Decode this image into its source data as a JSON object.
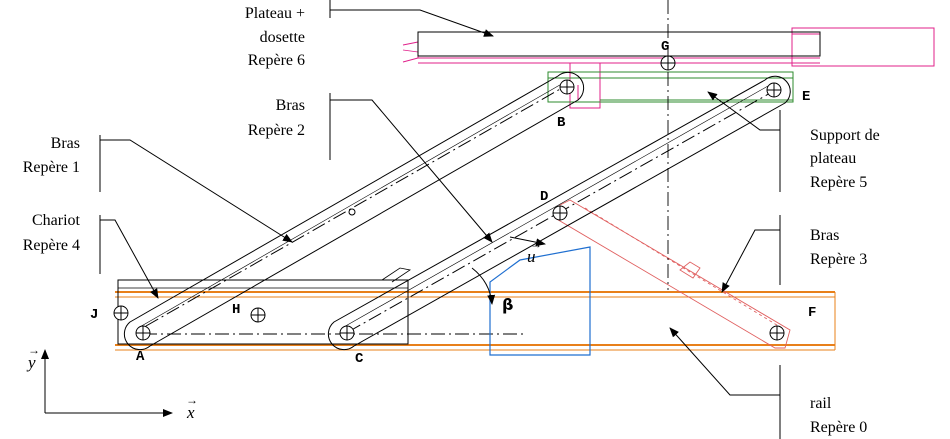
{
  "labels": {
    "plateau_line1": "Plateau +",
    "plateau_line2": "dosette",
    "plateau_line3": "Repère 6",
    "bras2_line1": "Bras",
    "bras2_line2": "Repère 2",
    "bras1_line1": "Bras",
    "bras1_line2": "Repère 1",
    "chariot_line1": "Chariot",
    "chariot_line2": "Repère 4",
    "support_line1": "Support de",
    "support_line2": "plateau",
    "support_line3": "Repère 5",
    "bras3_line1": "Bras",
    "bras3_line2": "Repère 3",
    "rail_line1": "rail",
    "rail_line2": "Repère 0"
  },
  "points": {
    "A": "A",
    "B": "B",
    "C": "C",
    "D": "D",
    "E": "E",
    "F": "F",
    "G": "G",
    "H": "H",
    "J": "J"
  },
  "axes": {
    "x": "x",
    "y": "y",
    "u": "u",
    "angle": "β"
  },
  "colors": {
    "plateau": "#e0208a",
    "support": "#2e8b2e",
    "rail": "#e8801a",
    "bras3": "#e06060",
    "wedge": "#1f6fd0",
    "ink": "#000000"
  }
}
